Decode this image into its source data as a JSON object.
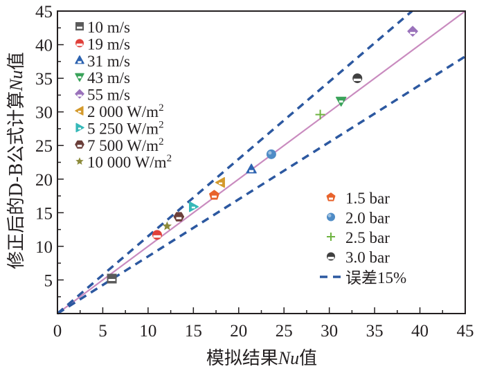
{
  "chart_data": {
    "type": "scatter",
    "title": "",
    "xlabel": "模拟结果Nu值",
    "ylabel": "修正后的D-B公式计算Nu值",
    "xlim": [
      0,
      45
    ],
    "ylim": [
      0,
      45
    ],
    "xticks": [
      0,
      5,
      10,
      15,
      20,
      25,
      30,
      35,
      40,
      45
    ],
    "yticks": [
      5,
      10,
      15,
      20,
      25,
      30,
      35,
      40,
      45
    ],
    "xtick_labels": [
      "0",
      "5",
      "10",
      "15",
      "20",
      "25",
      "30",
      "35",
      "40",
      "45"
    ],
    "ytick_labels": [
      "5",
      "10",
      "15",
      "20",
      "25",
      "30",
      "35",
      "40",
      "45"
    ],
    "grid": false,
    "reference_lines": [
      {
        "name": "y=x",
        "slope": 1.0,
        "color": "#c98bbf",
        "style": "solid"
      },
      {
        "name": "误差15% upper",
        "slope": 1.15,
        "color": "#2c58a0",
        "style": "dashed"
      },
      {
        "name": "误差15% lower",
        "slope": 0.85,
        "color": "#2c58a0",
        "style": "dashed"
      }
    ],
    "series": [
      {
        "name": "10 m/s",
        "legend": "10 m/s",
        "marker": "square",
        "color": "#5a5a5a",
        "points": [
          [
            6.0,
            5.2
          ]
        ]
      },
      {
        "name": "19 m/s",
        "legend": "19 m/s",
        "marker": "circle",
        "color": "#e0403a",
        "points": [
          [
            11.0,
            11.7
          ]
        ]
      },
      {
        "name": "31 m/s",
        "legend": "31 m/s",
        "marker": "triangle-up",
        "color": "#2d63b0",
        "points": [
          [
            21.4,
            21.5
          ]
        ]
      },
      {
        "name": "43 m/s",
        "legend": "43 m/s",
        "marker": "triangle-down",
        "color": "#3aa35a",
        "points": [
          [
            31.3,
            31.6
          ]
        ]
      },
      {
        "name": "55 m/s",
        "legend": "55 m/s",
        "marker": "diamond",
        "color": "#9a72bb",
        "points": [
          [
            39.2,
            42.0
          ]
        ]
      },
      {
        "name": "2 000 W/m2",
        "legend": "2 000 W/m",
        "sup": "2",
        "marker": "triangle-left",
        "color": "#d49a2c",
        "points": [
          [
            18.0,
            19.5
          ]
        ]
      },
      {
        "name": "5 250 W/m2",
        "legend": "5 250 W/m",
        "sup": "2",
        "marker": "triangle-right",
        "color": "#36b8b8",
        "points": [
          [
            15.0,
            15.9
          ]
        ]
      },
      {
        "name": "7 500 W/m2",
        "legend": "7 500 W/m",
        "sup": "2",
        "marker": "hexagon",
        "color": "#6b3f3a",
        "points": [
          [
            13.4,
            14.4
          ]
        ]
      },
      {
        "name": "10 000 W/m2",
        "legend": "10 000 W/m",
        "sup": "2",
        "marker": "star",
        "color": "#8c8a3a",
        "points": [
          [
            12.1,
            13.0
          ]
        ]
      },
      {
        "name": "1.5 bar",
        "legend": "1.5 bar",
        "marker": "pentagon",
        "color": "#e8632c",
        "points": [
          [
            17.3,
            17.6
          ]
        ]
      },
      {
        "name": "2.0 bar",
        "legend": "2.0 bar",
        "marker": "sphere",
        "color": "#4f8cc6",
        "points": [
          [
            23.6,
            23.7
          ]
        ]
      },
      {
        "name": "2.5 bar",
        "legend": "2.5 bar",
        "marker": "plus",
        "color": "#6db33f",
        "points": [
          [
            29.0,
            29.6
          ]
        ]
      },
      {
        "name": "3.0 bar",
        "legend": "3.0 bar",
        "marker": "circle-dark",
        "color": "#404040",
        "points": [
          [
            33.1,
            35.0
          ]
        ]
      }
    ],
    "legend_left": [
      "10 m/s",
      "19 m/s",
      "31 m/s",
      "43 m/s",
      "55 m/s",
      "2 000 W/m2",
      "5 250 W/m2",
      "7 500 W/m2",
      "10 000 W/m2"
    ],
    "legend_right": [
      "1.5 bar",
      "2.0 bar",
      "2.5 bar",
      "3.0 bar"
    ],
    "legend_error_label": "误差15%",
    "legend_placement": [
      "top-left",
      "bottom-right"
    ]
  }
}
